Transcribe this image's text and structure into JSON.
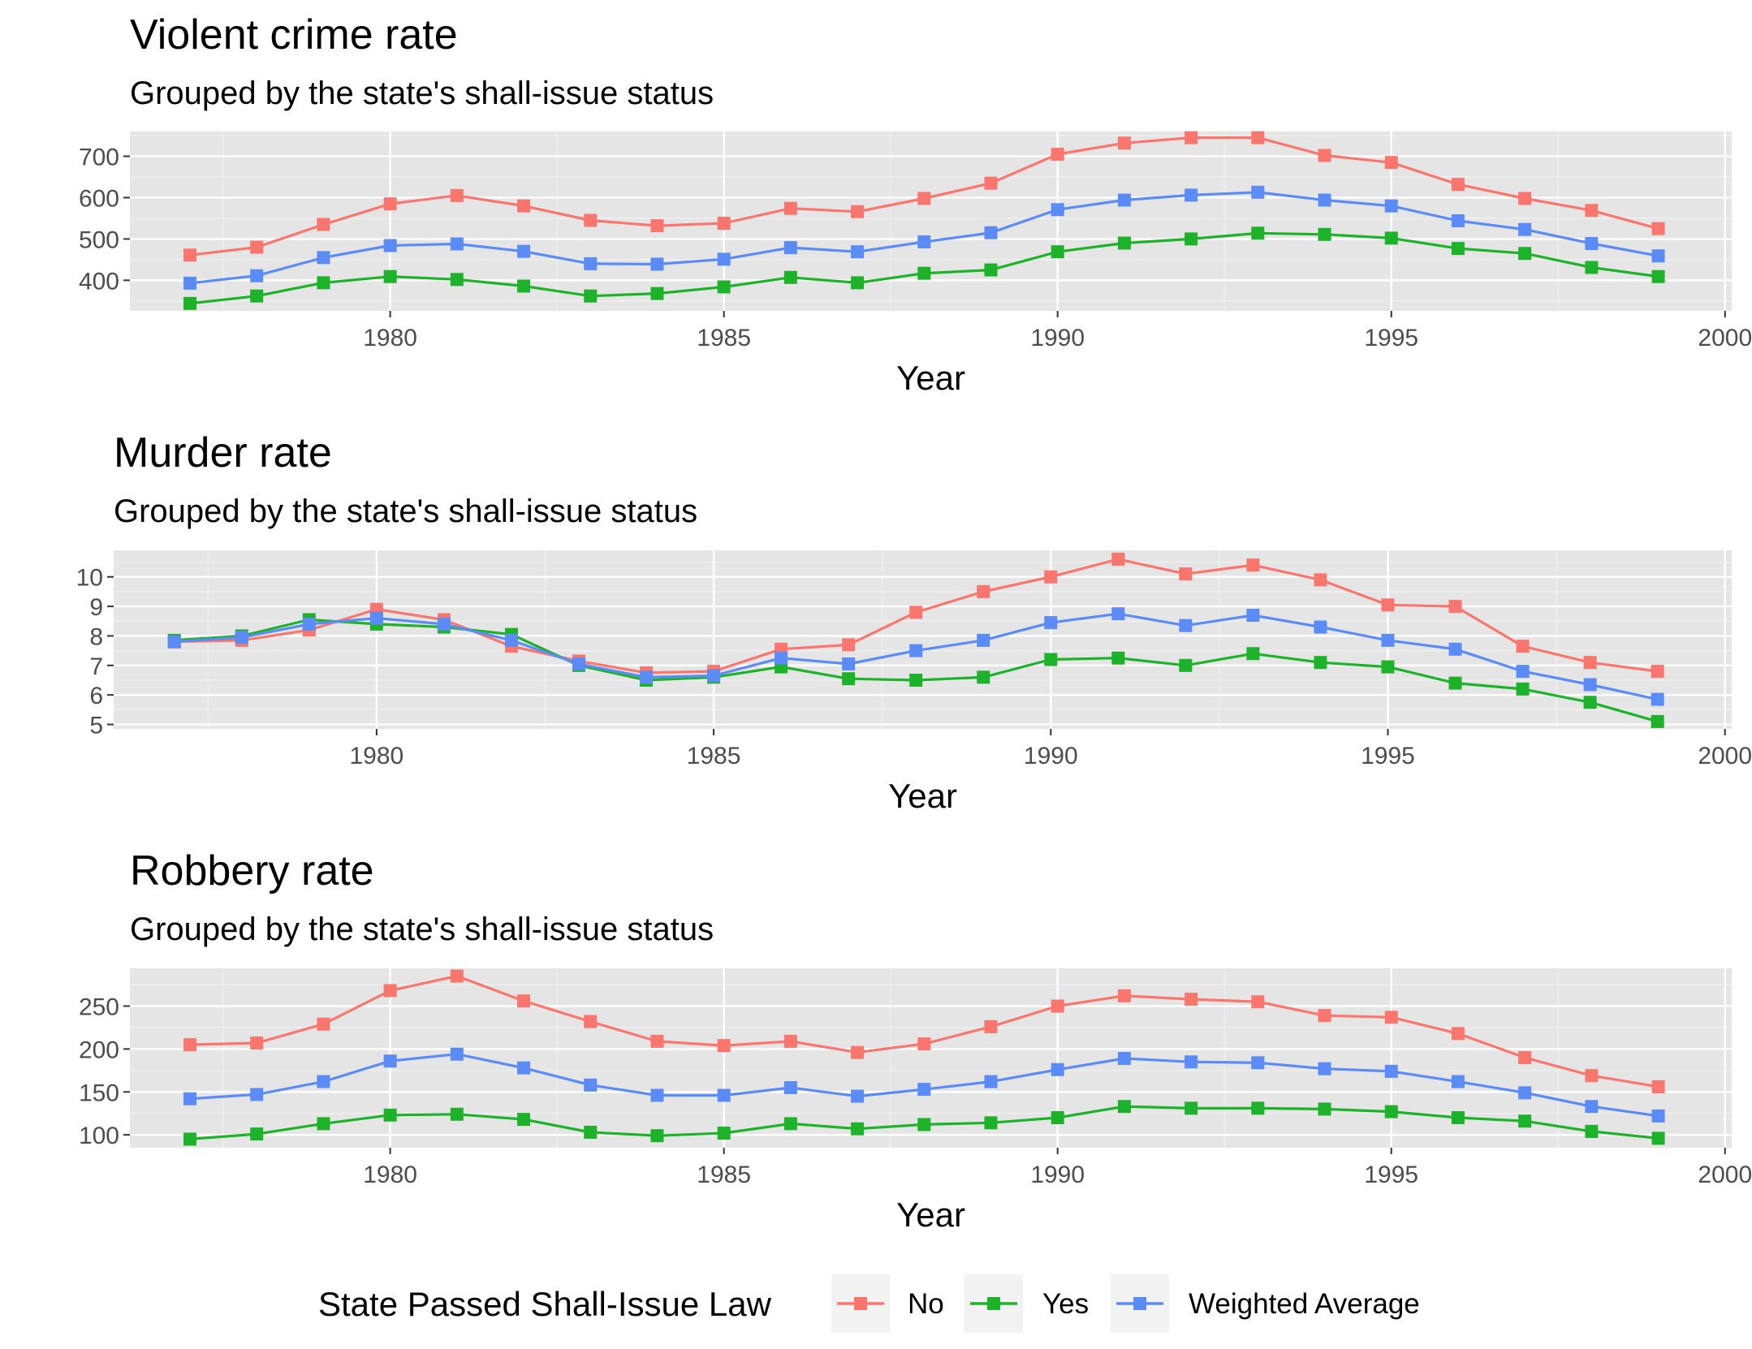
{
  "legend": {
    "title": "State Passed Shall-Issue Law",
    "entries": [
      {
        "label": "No",
        "color": "#F8766D"
      },
      {
        "label": "Yes",
        "color": "#1EB22A"
      },
      {
        "label": "Weighted Average",
        "color": "#5B8CF5"
      }
    ]
  },
  "chart_data": [
    {
      "type": "line",
      "title": "Violent crime rate",
      "subtitle": "Grouped by the state's shall-issue status",
      "xlabel": "Year",
      "ylabel": "",
      "xlim": [
        1976.1,
        2000.1
      ],
      "ylim": [
        326,
        760
      ],
      "x_ticks": [
        1980,
        1985,
        1990,
        1995,
        2000
      ],
      "y_ticks": [
        400,
        500,
        600,
        700
      ],
      "x": [
        1977,
        1978,
        1979,
        1980,
        1981,
        1982,
        1983,
        1984,
        1985,
        1986,
        1987,
        1988,
        1989,
        1990,
        1991,
        1992,
        1993,
        1994,
        1995,
        1996,
        1997,
        1998,
        1999
      ],
      "series": [
        {
          "name": "No",
          "values": [
            461,
            480,
            535,
            585,
            605,
            580,
            545,
            532,
            538,
            574,
            566,
            598,
            635,
            705,
            732,
            745,
            745,
            702,
            685,
            632,
            598,
            569,
            525
          ]
        },
        {
          "name": "Yes",
          "values": [
            344,
            362,
            394,
            409,
            402,
            386,
            362,
            368,
            384,
            407,
            394,
            417,
            425,
            469,
            490,
            500,
            514,
            511,
            502,
            477,
            465,
            431,
            409
          ]
        },
        {
          "name": "Weighted Average",
          "values": [
            393,
            411,
            455,
            484,
            488,
            470,
            440,
            439,
            451,
            479,
            469,
            493,
            515,
            571,
            594,
            606,
            613,
            594,
            580,
            544,
            523,
            489,
            459
          ]
        }
      ]
    },
    {
      "type": "line",
      "title": "Murder rate",
      "subtitle": "Grouped by the state's shall-issue status",
      "xlabel": "Year",
      "ylabel": "",
      "xlim": [
        1976.1,
        2000.1
      ],
      "ylim": [
        4.85,
        10.9
      ],
      "x_ticks": [
        1980,
        1985,
        1990,
        1995,
        2000
      ],
      "y_ticks": [
        5,
        6,
        7,
        8,
        9,
        10
      ],
      "x": [
        1977,
        1978,
        1979,
        1980,
        1981,
        1982,
        1983,
        1984,
        1985,
        1986,
        1987,
        1988,
        1989,
        1990,
        1991,
        1992,
        1993,
        1994,
        1995,
        1996,
        1997,
        1998,
        1999
      ],
      "series": [
        {
          "name": "No",
          "values": [
            7.8,
            7.85,
            8.2,
            8.9,
            8.55,
            7.65,
            7.15,
            6.75,
            6.8,
            7.55,
            7.7,
            8.8,
            9.5,
            10.0,
            10.6,
            10.1,
            10.4,
            9.9,
            9.05,
            9.0,
            7.65,
            7.1,
            6.8
          ]
        },
        {
          "name": "Yes",
          "values": [
            7.85,
            8.0,
            8.55,
            8.4,
            8.3,
            8.05,
            7.0,
            6.5,
            6.6,
            6.95,
            6.55,
            6.5,
            6.6,
            7.2,
            7.25,
            7.0,
            7.4,
            7.1,
            6.95,
            6.4,
            6.2,
            5.75,
            5.1
          ]
        },
        {
          "name": "Weighted Average",
          "values": [
            7.8,
            7.95,
            8.4,
            8.6,
            8.4,
            7.85,
            7.05,
            6.6,
            6.65,
            7.25,
            7.05,
            7.5,
            7.85,
            8.45,
            8.75,
            8.35,
            8.7,
            8.3,
            7.85,
            7.55,
            6.8,
            6.35,
            5.85
          ]
        }
      ]
    },
    {
      "type": "line",
      "title": "Robbery rate",
      "subtitle": "Grouped by the state's shall-issue status",
      "xlabel": "Year",
      "ylabel": "",
      "xlim": [
        1976.1,
        2000.1
      ],
      "ylim": [
        85,
        294
      ],
      "x_ticks": [
        1980,
        1985,
        1990,
        1995,
        2000
      ],
      "y_ticks": [
        100,
        150,
        200,
        250
      ],
      "x": [
        1977,
        1978,
        1979,
        1980,
        1981,
        1982,
        1983,
        1984,
        1985,
        1986,
        1987,
        1988,
        1989,
        1990,
        1991,
        1992,
        1993,
        1994,
        1995,
        1996,
        1997,
        1998,
        1999
      ],
      "series": [
        {
          "name": "No",
          "values": [
            205,
            207,
            229,
            268,
            285,
            256,
            232,
            209,
            204,
            209,
            196,
            206,
            226,
            250,
            262,
            258,
            255,
            239,
            237,
            218,
            190,
            169,
            156
          ]
        },
        {
          "name": "Yes",
          "values": [
            95,
            101,
            113,
            123,
            124,
            118,
            103,
            99,
            102,
            113,
            107,
            112,
            114,
            120,
            133,
            131,
            131,
            130,
            127,
            120,
            116,
            104,
            96
          ]
        },
        {
          "name": "Weighted Average",
          "values": [
            142,
            147,
            162,
            186,
            194,
            178,
            158,
            146,
            146,
            155,
            145,
            153,
            162,
            176,
            189,
            185,
            184,
            177,
            174,
            162,
            149,
            133,
            122
          ]
        }
      ]
    }
  ]
}
